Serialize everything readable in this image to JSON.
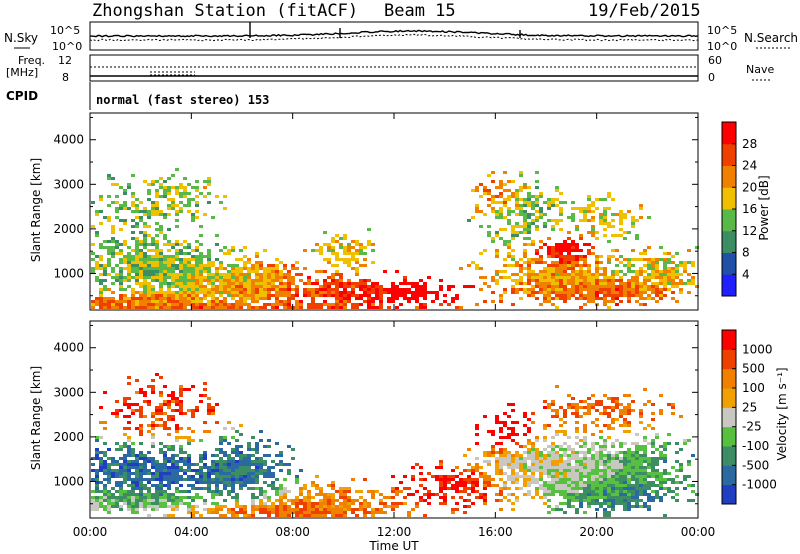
{
  "header": {
    "station": "Zhongshan Station (fitACF)",
    "beam": "Beam 15",
    "date": "19/Feb/2015"
  },
  "noise_panel": {
    "left_label": "N.Sky",
    "right_label": "N.Search",
    "left_ticks": [
      "10^5",
      "10^0"
    ],
    "right_ticks": [
      "10^5",
      "10^0"
    ]
  },
  "freq_panel": {
    "left_label_line1": "Freq.",
    "left_label_line2": "[MHz]",
    "left_ticks": [
      "12",
      "8"
    ],
    "right_ticks": [
      "60",
      "0"
    ],
    "right_label": "Nave"
  },
  "cpid": {
    "label": "CPID",
    "mode_text": "normal (fast stereo) 153"
  },
  "power_panel": {
    "ylabel": "Slant Range [km]",
    "yticks": [
      "4000",
      "3000",
      "2000",
      "1000"
    ],
    "colorbar_label": "Power [dB]",
    "colorbar_ticks": [
      "28",
      "24",
      "20",
      "16",
      "12",
      "8",
      "4"
    ],
    "colors": [
      "#2020ff",
      "#2050a8",
      "#3c8c64",
      "#58b848",
      "#f0c000",
      "#f08000",
      "#f04000",
      "#ff0000"
    ]
  },
  "velocity_panel": {
    "ylabel": "Slant Range [km]",
    "yticks": [
      "4000",
      "3000",
      "2000",
      "1000"
    ],
    "colorbar_label": "Velocity [m s⁻¹]",
    "colorbar_ticks": [
      "1000",
      "500",
      "100",
      "25",
      "-25",
      "-100",
      "-500",
      "-1000"
    ],
    "colors": [
      "#1f3fc0",
      "#2a6aa0",
      "#3c8c64",
      "#58c040",
      "#c8c8c0",
      "#f0a000",
      "#f08000",
      "#f04000",
      "#ff0000"
    ]
  },
  "xaxis": {
    "label": "Time UT",
    "ticks": [
      "00:00",
      "04:00",
      "08:00",
      "12:00",
      "16:00",
      "20:00",
      "00:00"
    ]
  },
  "chart_data": {
    "type": "heatmap",
    "title": "Zhongshan Station (fitACF)",
    "panels": [
      {
        "name": "Power",
        "ylabel": "Slant Range [km]",
        "ylim": [
          180,
          4600
        ],
        "colorbar_label": "Power [dB]",
        "color_range": [
          0,
          32
        ],
        "x_range": [
          "00:00",
          "24:00"
        ]
      },
      {
        "name": "Velocity",
        "ylabel": "Slant Range [km]",
        "ylim": [
          180,
          4600
        ],
        "colorbar_label": "Velocity [m s⁻¹]",
        "color_levels": [
          -1000,
          -500,
          -100,
          -25,
          25,
          100,
          500,
          1000
        ],
        "x_range": [
          "00:00",
          "24:00"
        ]
      }
    ],
    "xlabel": "Time UT"
  }
}
